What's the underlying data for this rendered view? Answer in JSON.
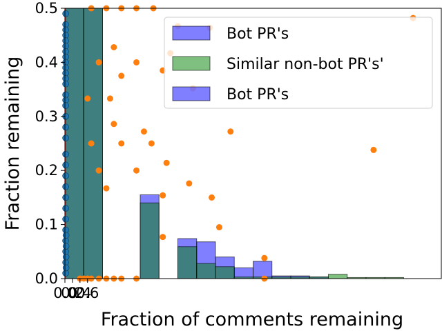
{
  "chart_data": {
    "type": "bar",
    "title": "",
    "xlabel": "Fraction of comments remaining",
    "ylabel": "Fraction remaining",
    "xlim": [
      0,
      0.1
    ],
    "ylim": [
      0,
      0.5
    ],
    "y_ticks": [
      0.0,
      0.1,
      0.2,
      0.3,
      0.4,
      0.5
    ],
    "y_tick_labels": [
      "0.0",
      "0.1",
      "0.2",
      "0.3",
      "0.4",
      "0.5"
    ],
    "x_ticks": [
      0.0,
      0.002,
      0.004,
      0.006
    ],
    "x_tick_labels": [
      "0.0",
      "0.2",
      "0.4",
      "0.6"
    ],
    "grid": false,
    "legend_position": "top-right",
    "legend": [
      {
        "label": "Bot PR's",
        "color": "#0000ff",
        "alpha": 0.5
      },
      {
        "label": "Similar non-bot PR's'",
        "color": "#008000",
        "alpha": 0.5
      },
      {
        "label": "Bot PR's",
        "color": "#0000ff",
        "alpha": 0.5
      }
    ],
    "bin_width": 0.005,
    "histograms": [
      {
        "color": "#0000ff",
        "values": [
          0.5,
          0.5,
          0.0,
          0.0,
          0.155,
          0.0,
          0.074,
          0.068,
          0.04,
          0.02,
          0.032,
          0.005,
          0.005,
          0.003,
          0.0,
          0.0,
          0.0,
          0.0,
          0.0,
          0.0,
          0.0,
          0.005,
          0.0,
          0.0,
          0.0,
          0.0,
          0.0,
          0.0,
          0.0,
          0.0,
          0.0,
          0.0,
          0.0,
          0.0
        ]
      },
      {
        "color": "#008000",
        "values": [
          0.5,
          0.5,
          0.0,
          0.0,
          0.14,
          0.0,
          0.059,
          0.028,
          0.022,
          0.003,
          0.003,
          0.003,
          0.003,
          0.003,
          0.008,
          0.002,
          0.002,
          0.002,
          0.0,
          0.0,
          0.0,
          0.0,
          0.0,
          0.0,
          0.0,
          0.0,
          0.0,
          0.0,
          0.0,
          0.002,
          0.0,
          0.0,
          0.0,
          0.0
        ]
      }
    ],
    "scatter_series": [
      {
        "color": "#1f77b4",
        "points": [
          [
            0.0002,
            0.49
          ],
          [
            0.0002,
            0.47
          ],
          [
            0.0002,
            0.46
          ],
          [
            0.0002,
            0.45
          ],
          [
            0.0002,
            0.44
          ],
          [
            0.0002,
            0.43
          ],
          [
            0.0002,
            0.42
          ],
          [
            0.0002,
            0.41
          ],
          [
            0.0002,
            0.4
          ],
          [
            0.0002,
            0.39
          ],
          [
            0.0002,
            0.38
          ],
          [
            0.0002,
            0.37
          ],
          [
            0.0002,
            0.36
          ],
          [
            0.0002,
            0.34
          ],
          [
            0.0002,
            0.33
          ],
          [
            0.0002,
            0.32
          ],
          [
            0.0002,
            0.3
          ],
          [
            0.0002,
            0.28
          ],
          [
            0.0002,
            0.26
          ],
          [
            0.0002,
            0.23
          ],
          [
            0.0002,
            0.21
          ],
          [
            0.0002,
            0.19
          ],
          [
            0.0002,
            0.17
          ],
          [
            0.0002,
            0.15
          ],
          [
            0.0002,
            0.13
          ],
          [
            0.0002,
            0.11
          ],
          [
            0.0002,
            0.09
          ],
          [
            0.0002,
            0.07
          ],
          [
            0.0002,
            0.05
          ],
          [
            0.0002,
            0.03
          ],
          [
            0.0002,
            0.01
          ],
          [
            0.0003,
            0.08
          ],
          [
            0.0003,
            0.06
          ],
          [
            0.0003,
            0.04
          ],
          [
            0.0003,
            0.02
          ]
        ]
      },
      {
        "color": "#ff7f0e",
        "points": [
          [
            0.007,
            0.5
          ],
          [
            0.011,
            0.5
          ],
          [
            0.015,
            0.5
          ],
          [
            0.019,
            0.5
          ],
          [
            0.0235,
            0.5
          ],
          [
            0.03,
            0.467
          ],
          [
            0.0385,
            0.464
          ],
          [
            0.0925,
            0.482
          ],
          [
            0.028,
            0.417
          ],
          [
            0.013,
            0.428
          ],
          [
            0.009,
            0.4
          ],
          [
            0.019,
            0.4
          ],
          [
            0.026,
            0.385
          ],
          [
            0.015,
            0.375
          ],
          [
            0.006,
            0.333
          ],
          [
            0.012,
            0.333
          ],
          [
            0.034,
            0.352
          ],
          [
            0.007,
            0.25
          ],
          [
            0.013,
            0.286
          ],
          [
            0.021,
            0.272
          ],
          [
            0.044,
            0.272
          ],
          [
            0.015,
            0.25
          ],
          [
            0.023,
            0.25
          ],
          [
            0.009,
            0.2
          ],
          [
            0.019,
            0.2
          ],
          [
            0.027,
            0.214
          ],
          [
            0.033,
            0.176
          ],
          [
            0.011,
            0.167
          ],
          [
            0.026,
            0.154
          ],
          [
            0.039,
            0.15
          ],
          [
            0.041,
            0.095
          ],
          [
            0.026,
            0.077
          ],
          [
            0.053,
            0.038
          ],
          [
            0.082,
            0.238
          ],
          [
            0.053,
            0.0
          ],
          [
            0.004,
            0.0
          ],
          [
            0.005,
            0.0
          ],
          [
            0.006,
            0.0
          ],
          [
            0.007,
            0.0
          ],
          [
            0.009,
            0.0
          ],
          [
            0.011,
            0.0
          ],
          [
            0.013,
            0.0
          ],
          [
            0.015,
            0.0
          ],
          [
            0.019,
            0.0
          ]
        ]
      }
    ],
    "vertical_line": {
      "x": 0.0,
      "color": "#d62728"
    }
  }
}
